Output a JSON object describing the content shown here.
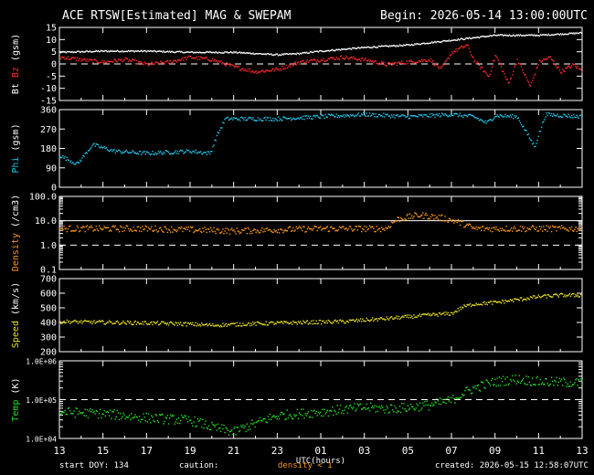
{
  "header": {
    "title": "ACE RTSW[Estimated] MAG & SWEPAM",
    "begin": "Begin: 2026-05-14 13:00:00UTC"
  },
  "footer": {
    "start_doy": "start DOY: 134",
    "caution_label": "caution:",
    "caution_text": "density < 1",
    "created": "created: 2026-05-15 12:58:07UTC"
  },
  "colors": {
    "bt": "#ffffff",
    "bz": "#ff2a2a",
    "phi": "#22c4e8",
    "density": "#ff9a1a",
    "speed": "#e8e020",
    "temp": "#22dd22",
    "caution": "#ff9a1a",
    "axes": "#ffffff"
  },
  "chart_data": {
    "type": "scatter",
    "x": {
      "label": "UTC(hours)",
      "range_hours": [
        0,
        24
      ],
      "ticks": [
        "13",
        "15",
        "17",
        "19",
        "21",
        "23",
        "01",
        "03",
        "05",
        "07",
        "09",
        "11",
        "13"
      ]
    },
    "panels": [
      {
        "id": "mag",
        "ylabel_parts": [
          "Bt",
          "Bz",
          "(gsm)"
        ],
        "ylim": [
          -15,
          15
        ],
        "ticks": [
          "15",
          "10",
          "5",
          "0",
          "-5",
          "-10",
          "-15"
        ],
        "dashed_at": 0,
        "series": [
          {
            "name": "Bt",
            "color": "#ffffff",
            "knots": [
              [
                0,
                5
              ],
              [
                2,
                5.5
              ],
              [
                4,
                5.5
              ],
              [
                6,
                5
              ],
              [
                8,
                5
              ],
              [
                10,
                4
              ],
              [
                11,
                4.5
              ],
              [
                12,
                5.5
              ],
              [
                14,
                7
              ],
              [
                16,
                8
              ],
              [
                18,
                10
              ],
              [
                20,
                12
              ],
              [
                22,
                12
              ],
              [
                24,
                13
              ]
            ]
          },
          {
            "name": "Bz",
            "color": "#ff2a2a",
            "knots": [
              [
                0,
                3
              ],
              [
                1,
                2
              ],
              [
                2,
                1
              ],
              [
                3,
                2
              ],
              [
                4,
                0
              ],
              [
                5,
                1
              ],
              [
                6,
                3
              ],
              [
                7,
                2
              ],
              [
                8,
                -1
              ],
              [
                9,
                -3
              ],
              [
                10,
                -2
              ],
              [
                11,
                1
              ],
              [
                12,
                2
              ],
              [
                13,
                3
              ],
              [
                14,
                2
              ],
              [
                15,
                0
              ],
              [
                16,
                1
              ],
              [
                17,
                2
              ],
              [
                17.5,
                -2
              ],
              [
                18,
                5
              ],
              [
                18.7,
                8
              ],
              [
                19,
                2
              ],
              [
                19.7,
                -5
              ],
              [
                20,
                4
              ],
              [
                20.6,
                -8
              ],
              [
                21,
                2
              ],
              [
                21.6,
                -9
              ],
              [
                22,
                1
              ],
              [
                22.5,
                3
              ],
              [
                23,
                -3
              ],
              [
                23.6,
                0
              ],
              [
                24,
                -3
              ]
            ]
          }
        ]
      },
      {
        "id": "phi",
        "ylabel_parts": [
          "Phi",
          "(gsm)"
        ],
        "ylim": [
          0,
          360
        ],
        "ticks": [
          "360",
          "270",
          "180",
          "90",
          "0"
        ],
        "series": [
          {
            "name": "Phi",
            "color": "#22c4e8",
            "knots": [
              [
                0,
                150
              ],
              [
                0.8,
                110
              ],
              [
                1.5,
                200
              ],
              [
                2.5,
                170
              ],
              [
                4,
                160
              ],
              [
                6,
                170
              ],
              [
                6.9,
                160
              ],
              [
                7.2,
                240
              ],
              [
                7.6,
                320
              ],
              [
                10,
                320
              ],
              [
                12,
                330
              ],
              [
                14,
                340
              ],
              [
                16,
                330
              ],
              [
                18,
                340
              ],
              [
                19,
                330
              ],
              [
                19.6,
                300
              ],
              [
                20,
                335
              ],
              [
                21,
                330
              ],
              [
                21.8,
                190
              ],
              [
                22.3,
                340
              ],
              [
                24,
                330
              ]
            ]
          }
        ]
      },
      {
        "id": "density",
        "ylabel_parts": [
          "Density",
          "(/cm3)"
        ],
        "scale": "log",
        "ylim": [
          0.1,
          100
        ],
        "ticks": [
          "100.0",
          "10.0",
          "1.0",
          "0.1"
        ],
        "solid_at": 10,
        "dashed_at": 1,
        "series": [
          {
            "name": "Density",
            "color": "#ff9a1a",
            "knots": [
              [
                0,
                5
              ],
              [
                4,
                5
              ],
              [
                8,
                4
              ],
              [
                12,
                5
              ],
              [
                14,
                5
              ],
              [
                15,
                5
              ],
              [
                15.5,
                12
              ],
              [
                16.5,
                18
              ],
              [
                17.5,
                14
              ],
              [
                18.5,
                8
              ],
              [
                19,
                5
              ],
              [
                22,
                5
              ],
              [
                24,
                5
              ]
            ]
          }
        ]
      },
      {
        "id": "speed",
        "ylabel_parts": [
          "Speed",
          "(km/s)"
        ],
        "ylim": [
          200,
          700
        ],
        "ticks": [
          "700",
          "600",
          "500",
          "400",
          "300",
          "200"
        ],
        "series": [
          {
            "name": "Speed",
            "color": "#e8e020",
            "knots": [
              [
                0,
                410
              ],
              [
                4,
                400
              ],
              [
                5.5,
                395
              ],
              [
                7,
                385
              ],
              [
                10,
                400
              ],
              [
                13,
                410
              ],
              [
                15,
                430
              ],
              [
                17,
                455
              ],
              [
                18,
                465
              ],
              [
                18.5,
                510
              ],
              [
                19,
                530
              ],
              [
                20,
                540
              ],
              [
                21,
                560
              ],
              [
                22,
                580
              ],
              [
                23,
                590
              ],
              [
                24,
                590
              ]
            ]
          }
        ]
      },
      {
        "id": "temp",
        "ylabel_parts": [
          "Temp",
          "(K)"
        ],
        "scale": "log",
        "ylim": [
          10000,
          1000000
        ],
        "ticks": [
          "1.0E+06",
          "1.0E+05",
          "1.0E+04"
        ],
        "dashed_at": 100000,
        "series": [
          {
            "name": "Temp",
            "color": "#22dd22",
            "knots": [
              [
                0,
                50000
              ],
              [
                2,
                45000
              ],
              [
                4,
                35000
              ],
              [
                6,
                30000
              ],
              [
                7,
                20000
              ],
              [
                8,
                15000
              ],
              [
                9,
                25000
              ],
              [
                10,
                40000
              ],
              [
                12,
                50000
              ],
              [
                14,
                65000
              ],
              [
                15,
                60000
              ],
              [
                16,
                65000
              ],
              [
                17,
                75000
              ],
              [
                18,
                100000
              ],
              [
                19,
                200000
              ],
              [
                20,
                300000
              ],
              [
                21,
                350000
              ],
              [
                22,
                300000
              ],
              [
                24,
                280000
              ]
            ]
          }
        ]
      }
    ]
  }
}
